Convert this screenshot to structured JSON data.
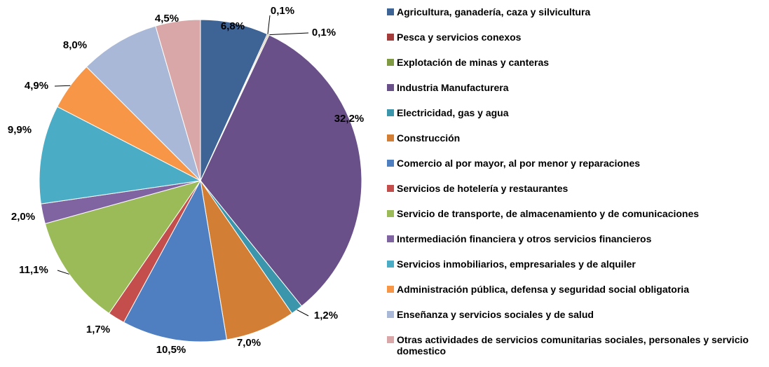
{
  "chart_data": {
    "type": "pie",
    "categories": [
      "Agricultura, ganadería, caza y silvicultura",
      "Pesca y servicios conexos",
      "Explotación de minas y canteras",
      "Industria Manufacturera",
      "Electricidad, gas y agua",
      "Construcción",
      "Comercio al por mayor, al por menor y reparaciones",
      "Servicios de hotelería y restaurantes",
      "Servicio de transporte, de almacenamiento y de comunicaciones",
      "Intermediación financiera y otros servicios financieros",
      "Servicios inmobiliarios, empresariales  y de alquiler",
      "Administración pública, defensa y seguridad social obligatoria",
      "Enseñanza y servicios sociales y de salud",
      "Otras actividades de servicios comunitarias sociales, personales y servicio domestico"
    ],
    "values": [
      6.8,
      0.1,
      0.1,
      32.2,
      1.2,
      7.0,
      10.5,
      1.7,
      11.1,
      2.0,
      9.9,
      4.9,
      8.0,
      4.5
    ],
    "value_labels": [
      "6,8%",
      "0,1%",
      "0,1%",
      "32,2%",
      "1,2%",
      "7,0%",
      "10,5%",
      "1,7%",
      "11,1%",
      "2,0%",
      "9,9%",
      "4,9%",
      "8,0%",
      "4,5%"
    ],
    "colors": [
      "#3e6496",
      "#a33b3b",
      "#7f9a43",
      "#6a5088",
      "#3b95ab",
      "#d27f35",
      "#4f7fc1",
      "#c44e4b",
      "#9bbb59",
      "#8064a2",
      "#4bacc6",
      "#f79646",
      "#aab8d7",
      "#d9a7a7"
    ]
  }
}
